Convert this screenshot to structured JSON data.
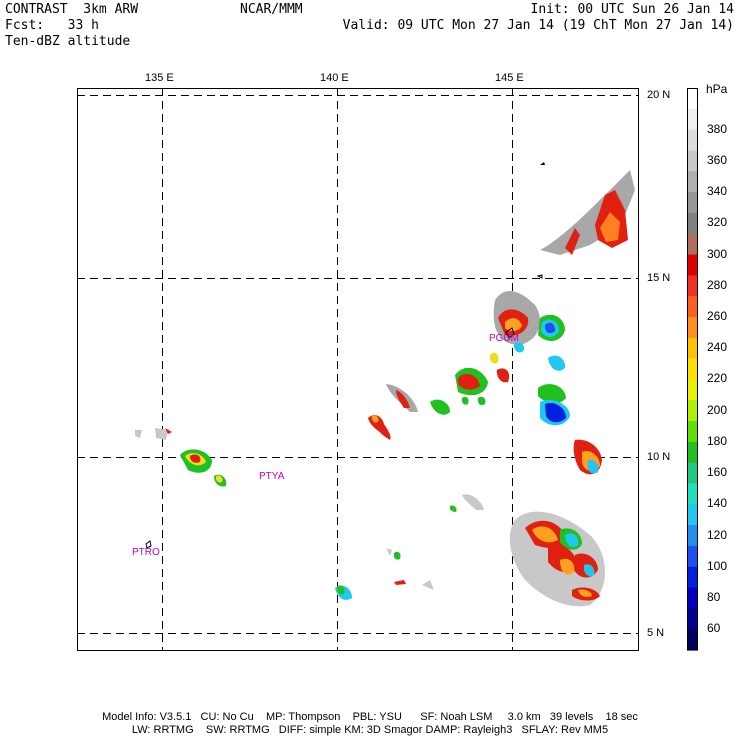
{
  "header": {
    "left_line1": "CONTRAST  3km ARW",
    "left_line2": "Fcst:   33 h",
    "left_line3": "Ten-dBZ altitude",
    "center_line1": "NCAR/MMM",
    "right_line1": "Init: 00 UTC Sun 26 Jan 14",
    "right_line2": "Valid: 09 UTC Mon 27 Jan 14 (19 ChT Mon 27 Jan 14)"
  },
  "map": {
    "lon_labels": [
      "135 E",
      "140 E",
      "145 E"
    ],
    "lat_labels": [
      "20 N",
      "15 N",
      "10 N",
      "5 N"
    ],
    "stations": [
      {
        "id": "PGUM",
        "label": "PGUM"
      },
      {
        "id": "PTYA",
        "label": "PTYA"
      },
      {
        "id": "PTRO",
        "label": "PTRO"
      }
    ],
    "colors": {
      "grid": "#000000",
      "station_label": "#c000c0"
    }
  },
  "colorbar": {
    "unit": "hPa",
    "labels": [
      "380",
      "360",
      "340",
      "320",
      "300",
      "280",
      "260",
      "240",
      "220",
      "200",
      "180",
      "160",
      "140",
      "120",
      "100",
      "80",
      "60"
    ],
    "colors": [
      "#ffffff",
      "#f0f0f0",
      "#dcdcdc",
      "#c8c8c8",
      "#b0b0b0",
      "#989898",
      "#808080",
      "#b07060",
      "#e00000",
      "#f03020",
      "#f86020",
      "#ff9020",
      "#ffc000",
      "#ffe000",
      "#e8f000",
      "#b0f000",
      "#60e000",
      "#20c020",
      "#20c880",
      "#20e0c0",
      "#20c8f0",
      "#2090f0",
      "#2050f0",
      "#0020e0",
      "#0000c0",
      "#000090",
      "#000060"
    ]
  },
  "footer": {
    "line1": "Model Info: V3.5.1   CU: No Cu    MP: Thompson    PBL: YSU      SF: Noah LSM     3.0 km   39 levels    18 sec",
    "line2": "LW: RRTMG    SW: RRTMG   DIFF: simple KM: 3D Smagor DAMP: Rayleigh3   SFLAY: Rev MM5"
  }
}
